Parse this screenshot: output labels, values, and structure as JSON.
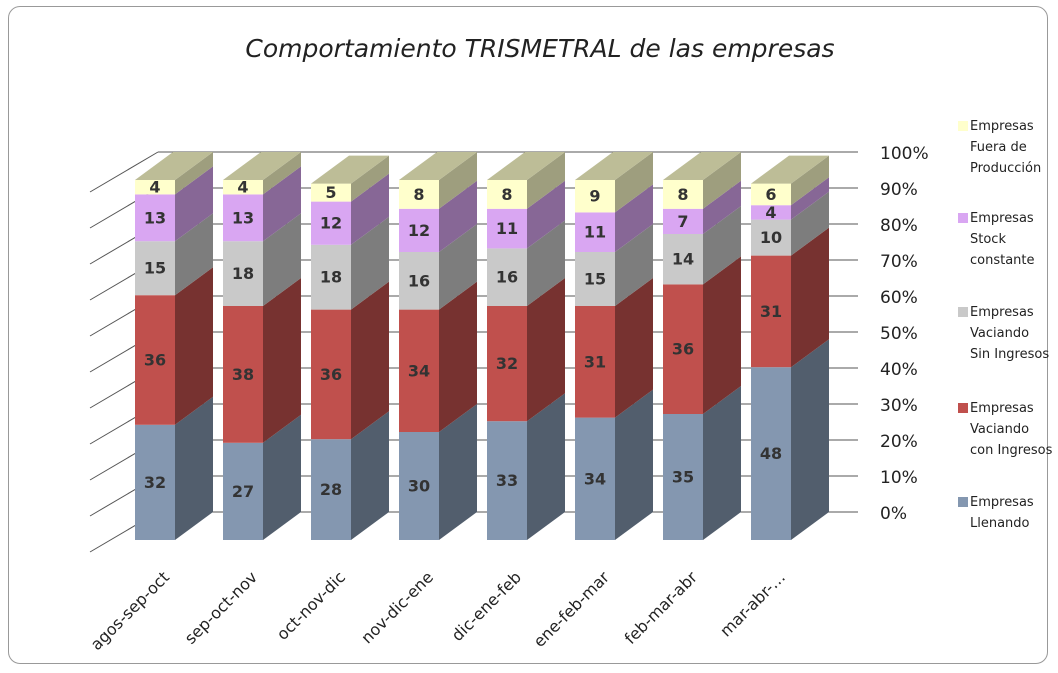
{
  "chart_data": {
    "type": "bar3d-stacked",
    "title": "Comportamiento TRISMETRAL de las empresas",
    "categories": [
      "agos-sep-oct",
      "sep-oct-nov",
      "oct-nov-dic",
      "nov-dic-ene",
      "dic-ene-feb",
      "ene-feb-mar",
      "feb-mar-abr",
      "mar-abr-…"
    ],
    "series": [
      {
        "name": "Empresas Llenando",
        "color": "#8497b0",
        "values": [
          32,
          27,
          28,
          30,
          33,
          34,
          35,
          48
        ]
      },
      {
        "name": "Empresas Vaciando con Ingresos",
        "color": "#c0504d",
        "values": [
          36,
          38,
          36,
          34,
          32,
          31,
          36,
          31
        ]
      },
      {
        "name": "Empresas Vaciando Sin Ingresos",
        "color": "#c9c9c9",
        "values": [
          15,
          18,
          18,
          16,
          16,
          15,
          14,
          10
        ]
      },
      {
        "name": "Empresas Stock constante",
        "color": "#d9a6f2",
        "values": [
          13,
          13,
          12,
          12,
          11,
          11,
          7,
          4
        ]
      },
      {
        "name": "Empresas Fuera de Producción",
        "color": "#ffffcc",
        "values": [
          4,
          4,
          5,
          8,
          8,
          9,
          8,
          6
        ]
      }
    ],
    "ylim": [
      0,
      100
    ],
    "yticks": [
      {
        "value": 0,
        "label": "0%"
      },
      {
        "value": 10,
        "label": "10%"
      },
      {
        "value": 20,
        "label": "20%"
      },
      {
        "value": 30,
        "label": "30%"
      },
      {
        "value": 40,
        "label": "40%"
      },
      {
        "value": 50,
        "label": "50%"
      },
      {
        "value": 60,
        "label": "60%"
      },
      {
        "value": 70,
        "label": "70%"
      },
      {
        "value": 80,
        "label": "80%"
      },
      {
        "value": 90,
        "label": "90%"
      },
      {
        "value": 100,
        "label": "100%"
      }
    ],
    "grid": true
  }
}
